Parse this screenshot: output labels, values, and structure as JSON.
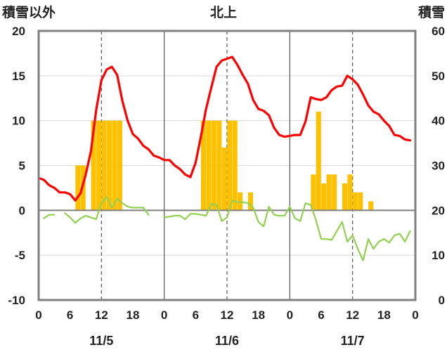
{
  "chart_data": {
    "type": "bar+line",
    "title": "北上",
    "left_axis_label": "積雪以外",
    "right_axis_label": "積雪",
    "left_ylim": [
      -10,
      20
    ],
    "left_ticks": [
      "20",
      "15",
      "10",
      "5",
      "0",
      "-5",
      "-10"
    ],
    "right_ylim": [
      0,
      60
    ],
    "right_ticks": [
      "60",
      "50",
      "40",
      "30",
      "20",
      "10",
      "0"
    ],
    "x_ticks": [
      "0",
      "6",
      "12",
      "18",
      "0",
      "6",
      "12",
      "18",
      "0",
      "6",
      "12",
      "18",
      "0"
    ],
    "day_labels": [
      "11/5",
      "11/6",
      "11/7"
    ],
    "grid": true,
    "colors": {
      "temperature": "#ff0000",
      "snow": "#ffc000",
      "green": "#92d050",
      "baseline": "#7030a0",
      "frame": "#808080"
    },
    "series": [
      {
        "key": "temperature",
        "axis": "left",
        "kind": "line",
        "x": [
          0,
          1,
          2,
          3,
          4,
          5,
          6,
          7,
          8,
          9,
          10,
          11,
          12,
          13,
          14,
          15,
          16,
          17,
          18,
          19,
          20,
          21,
          22,
          23,
          24,
          25,
          26,
          27,
          28,
          29,
          30,
          31,
          32,
          33,
          34,
          35,
          36,
          37,
          38,
          39,
          40,
          41,
          42,
          43,
          44,
          45,
          46,
          47,
          48,
          49,
          50,
          51,
          52,
          53,
          54,
          55,
          56,
          57,
          58,
          59,
          60,
          61,
          62,
          63,
          64,
          65,
          66,
          67,
          68,
          69,
          70,
          71
        ],
        "values": [
          3.6,
          3.4,
          2.8,
          2.5,
          2.0,
          2.0,
          1.8,
          1.1,
          1.9,
          4.0,
          6.6,
          11.2,
          14.5,
          15.7,
          16.0,
          15.1,
          12.2,
          10.0,
          8.5,
          8.0,
          7.2,
          6.8,
          6.1,
          5.9,
          5.6,
          5.6,
          5.0,
          4.6,
          4.0,
          3.7,
          5.3,
          8.2,
          11.3,
          13.7,
          16.0,
          16.7,
          16.9,
          17.1,
          16.2,
          15.1,
          14.1,
          12.3,
          11.3,
          11.1,
          10.6,
          9.2,
          8.4,
          8.2,
          8.3,
          8.4,
          8.4,
          9.9,
          12.6,
          12.4,
          12.3,
          12.6,
          13.4,
          13.8,
          13.9,
          15.0,
          14.6,
          14.0,
          12.9,
          11.7,
          11.0,
          10.7,
          10.0,
          9.4,
          8.4,
          8.3,
          7.9,
          7.8
        ]
      },
      {
        "key": "snow",
        "axis": "right",
        "kind": "bar",
        "x": [
          7,
          8,
          10,
          11,
          12,
          13,
          14,
          15,
          31,
          32,
          33,
          34,
          35,
          36,
          37,
          38,
          40,
          52,
          53,
          54,
          55,
          56,
          58,
          59,
          60,
          61,
          63
        ],
        "values": [
          30,
          30,
          40,
          40,
          40,
          40,
          40,
          40,
          40,
          40,
          40,
          40,
          34,
          40,
          40,
          24,
          24,
          28,
          42,
          26,
          28,
          28,
          26,
          28,
          24,
          24,
          22
        ]
      },
      {
        "key": "green",
        "axis": "left",
        "kind": "line",
        "segments": [
          {
            "x": [
              1,
              2,
              3
            ],
            "values": [
              -0.9,
              -0.5,
              -0.5
            ]
          },
          {
            "x": [
              5,
              6,
              7,
              8,
              9,
              10,
              11,
              12,
              13,
              14,
              15,
              16,
              17,
              18,
              19,
              20,
              21
            ],
            "values": [
              -0.3,
              -0.8,
              -1.4,
              -0.9,
              -0.6,
              -0.8,
              -1.0,
              0.8,
              1.5,
              0.3,
              1.3,
              0.8,
              0.4,
              0.3,
              0.3,
              0.3,
              -0.5
            ]
          },
          {
            "x": [
              24,
              25,
              26,
              27,
              28,
              29,
              30,
              31,
              32,
              33,
              34,
              35,
              36,
              37,
              38,
              39,
              40,
              41,
              42,
              43,
              44,
              45,
              46,
              47,
              48,
              49,
              50,
              51,
              52,
              53,
              54,
              55,
              56,
              57,
              58,
              59,
              60,
              61,
              62,
              63,
              64,
              65,
              66,
              67,
              68,
              69,
              70,
              71
            ],
            "values": [
              -0.8,
              -0.7,
              -0.6,
              -0.6,
              -1.0,
              -0.4,
              -0.4,
              -0.5,
              -0.6,
              0.7,
              0.6,
              -1.2,
              -0.8,
              1.1,
              0.9,
              0.9,
              0.8,
              0.3,
              -1.3,
              -1.8,
              0.4,
              -0.5,
              -0.6,
              -0.6,
              0.4,
              -0.9,
              -1.2,
              0.8,
              0.6,
              -1.1,
              -3.2,
              -3.2,
              -3.3,
              -2.3,
              -1.3,
              -3.5,
              -2.8,
              -4.3,
              -5.6,
              -3.2,
              -4.3,
              -3.5,
              -3.2,
              -3.6,
              -2.8,
              -2.6,
              -3.5,
              -2.3
            ]
          }
        ]
      },
      {
        "key": "baseline",
        "axis": "left",
        "kind": "line",
        "x": [
          0,
          72
        ],
        "values": [
          -10,
          -10
        ]
      }
    ]
  }
}
